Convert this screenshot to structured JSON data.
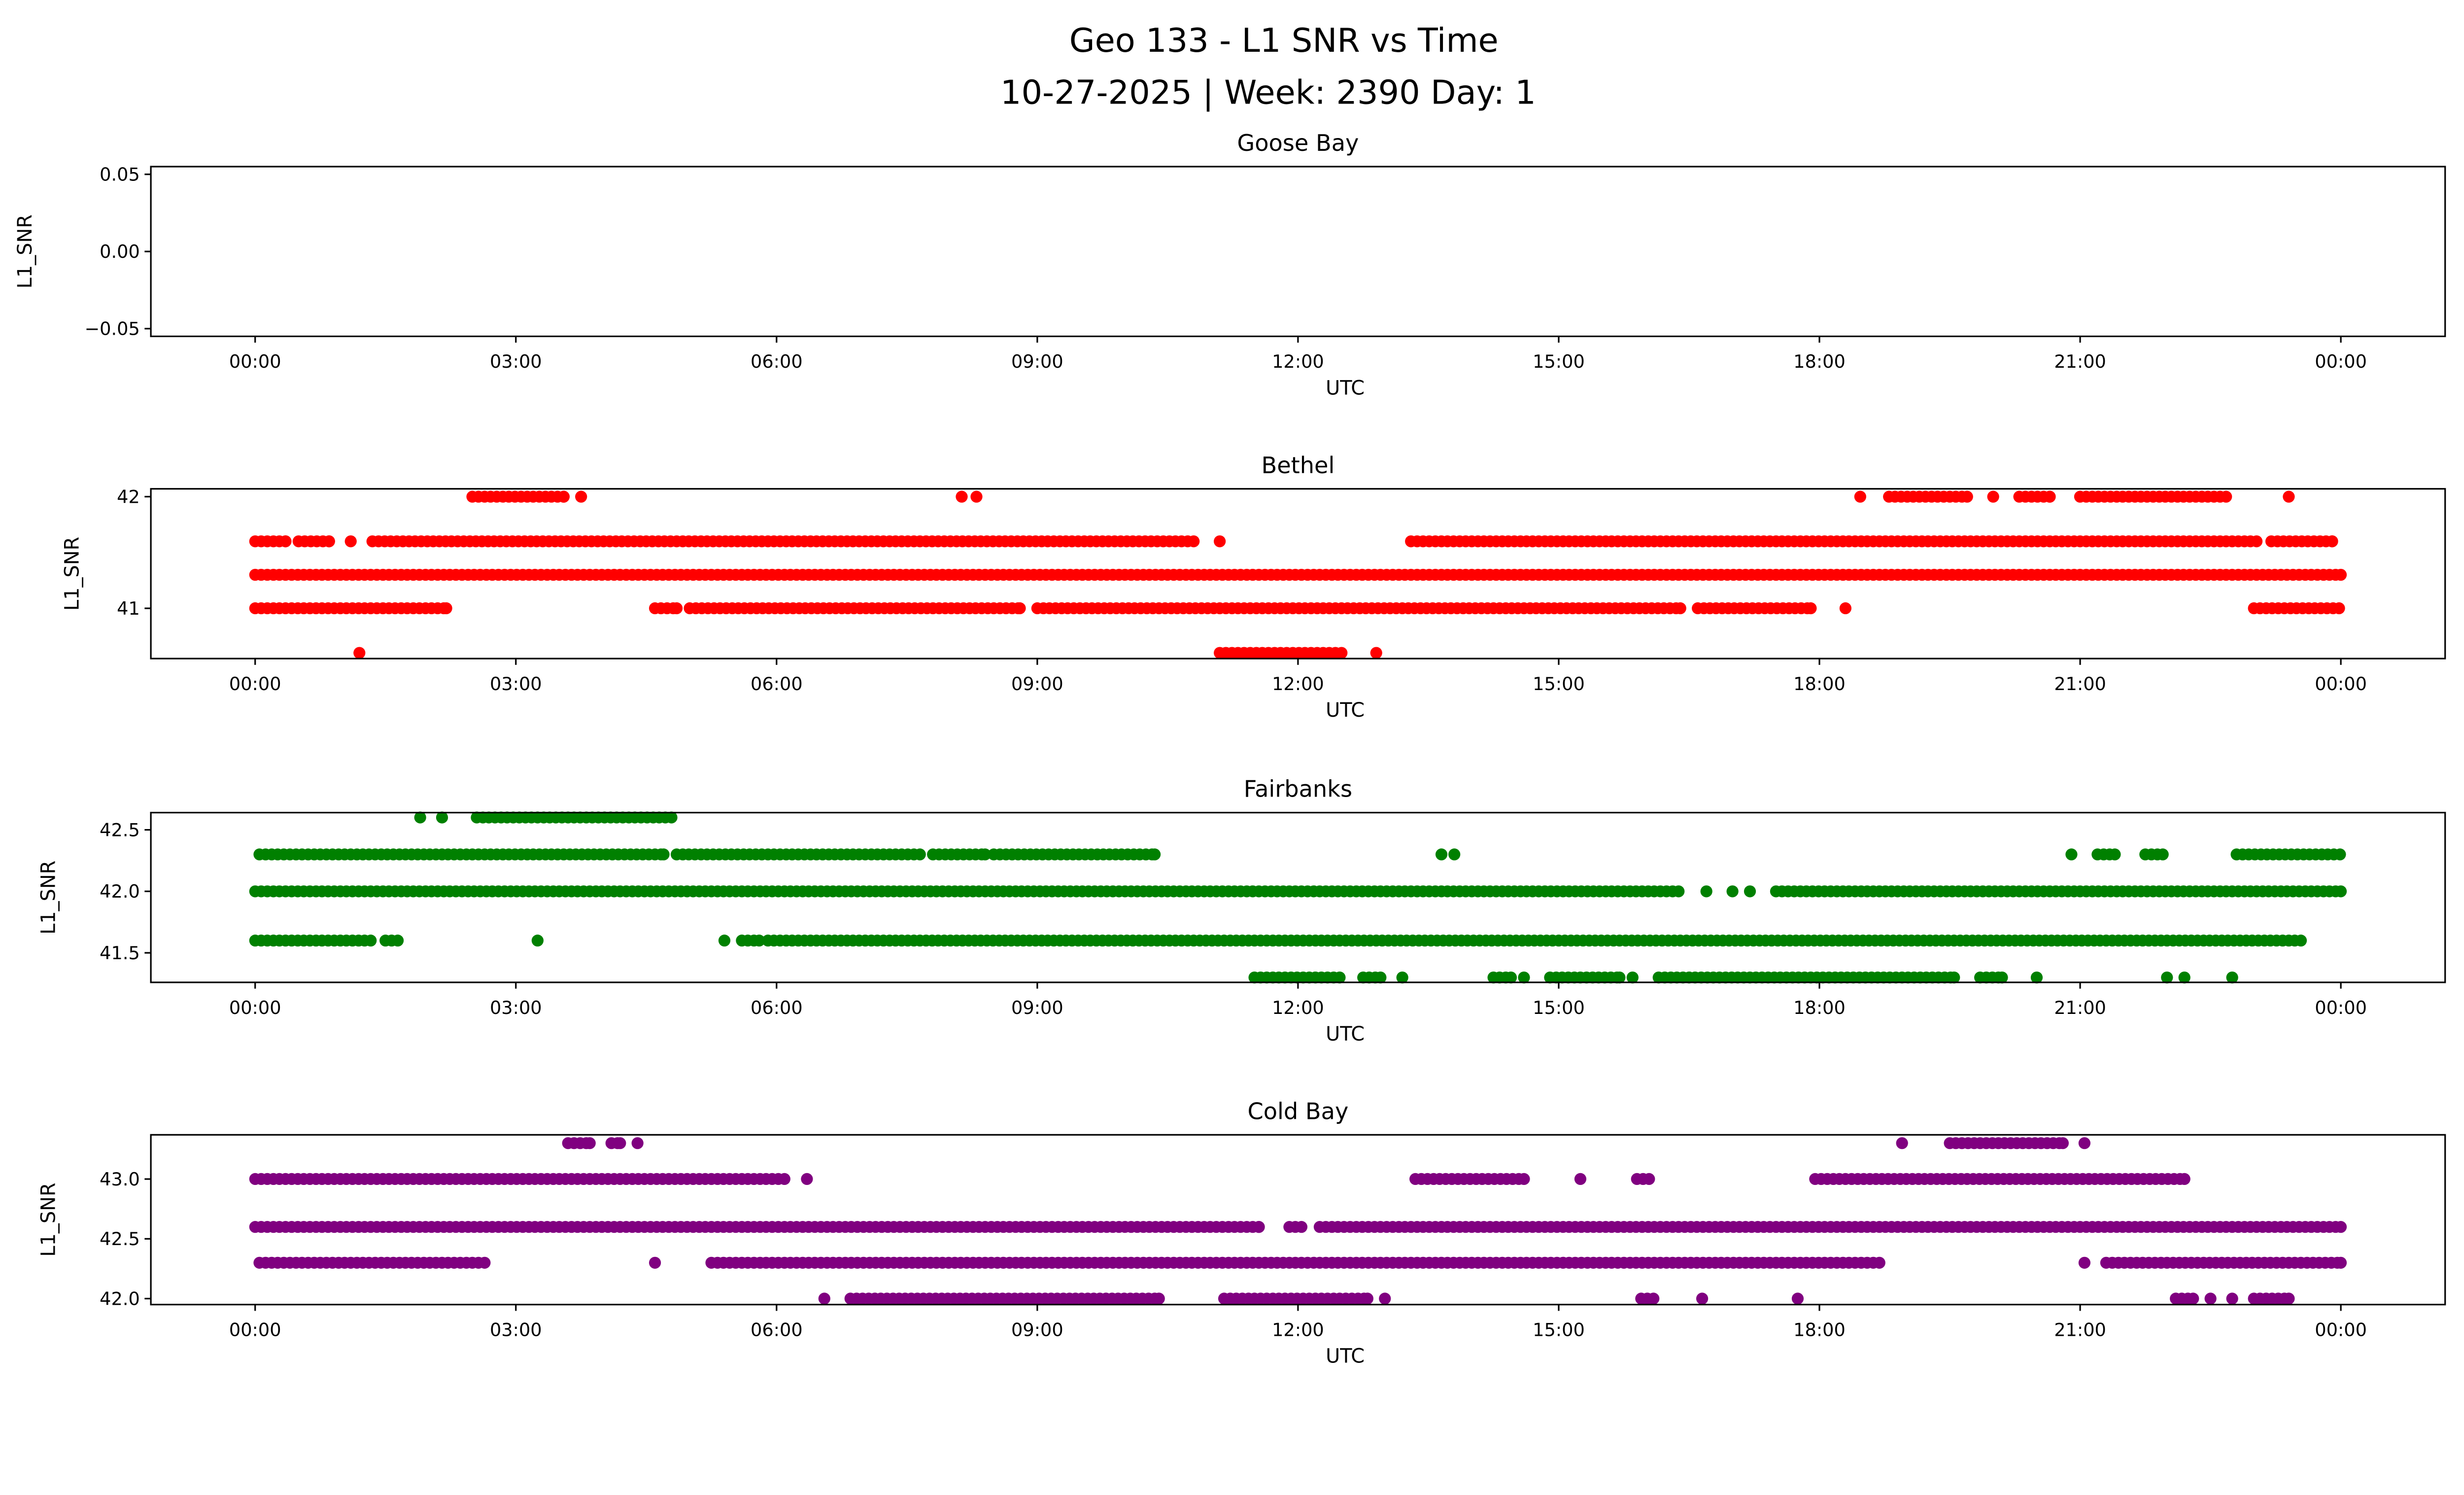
{
  "title_line1": "Geo 133 - L1 SNR vs Time",
  "title_line2": "10-27-2025 | Week: 2390 Day: 1",
  "chart_data": [
    {
      "type": "scatter",
      "title": "Goose Bay",
      "xlabel": "UTC",
      "ylabel": "L1_SNR",
      "color": "#1f77b4",
      "xlim_hours": [
        -1.2,
        25.2
      ],
      "xticks_hours": [
        0,
        3,
        6,
        9,
        12,
        15,
        18,
        21,
        24
      ],
      "xtick_labels": [
        "00:00",
        "03:00",
        "06:00",
        "09:00",
        "12:00",
        "15:00",
        "18:00",
        "21:00",
        "00:00"
      ],
      "ylim": [
        -0.055,
        0.055
      ],
      "yticks": [
        -0.05,
        0.0,
        0.05
      ],
      "ytick_labels": [
        "−0.05",
        "0.00",
        "0.05"
      ],
      "series": []
    },
    {
      "type": "scatter",
      "title": "Bethel",
      "xlabel": "UTC",
      "ylabel": "L1_SNR",
      "color": "#ff0000",
      "xlim_hours": [
        -1.2,
        25.2
      ],
      "xticks_hours": [
        0,
        3,
        6,
        9,
        12,
        15,
        18,
        21,
        24
      ],
      "xtick_labels": [
        "00:00",
        "03:00",
        "06:00",
        "09:00",
        "12:00",
        "15:00",
        "18:00",
        "21:00",
        "00:00"
      ],
      "ylim": [
        40.55,
        42.07
      ],
      "yticks": [
        41,
        42
      ],
      "ytick_labels": [
        "41",
        "42"
      ],
      "series": [
        {
          "snr": 42.0,
          "time_ranges_hours": [
            [
              2.5,
              3.55
            ],
            [
              3.75,
              3.75
            ],
            [
              8.13,
              8.13
            ],
            [
              8.3,
              8.3
            ],
            [
              18.47,
              18.47
            ],
            [
              18.8,
              19.7
            ],
            [
              20.0,
              20.0
            ],
            [
              20.3,
              20.65
            ],
            [
              21.0,
              22.7
            ],
            [
              23.4,
              23.4
            ]
          ]
        },
        {
          "snr": 41.6,
          "time_ranges_hours": [
            [
              0,
              0.35
            ],
            [
              0.5,
              0.85
            ],
            [
              1.1,
              1.1
            ],
            [
              1.35,
              10.8
            ],
            [
              11.1,
              11.1
            ],
            [
              13.3,
              23.05
            ],
            [
              23.2,
              23.9
            ]
          ]
        },
        {
          "snr": 41.3,
          "time_ranges_hours": [
            [
              0,
              24
            ]
          ]
        },
        {
          "snr": 41.0,
          "time_ranges_hours": [
            [
              0,
              2.2
            ],
            [
              4.6,
              4.85
            ],
            [
              5.0,
              8.8
            ],
            [
              9.0,
              16.4
            ],
            [
              16.6,
              17.9
            ],
            [
              18.3,
              18.3
            ],
            [
              23.0,
              24
            ]
          ]
        },
        {
          "snr": 40.6,
          "time_ranges_hours": [
            [
              1.2,
              1.2
            ],
            [
              11.1,
              12.5
            ],
            [
              12.9,
              12.9
            ]
          ]
        }
      ]
    },
    {
      "type": "scatter",
      "title": "Fairbanks",
      "xlabel": "UTC",
      "ylabel": "L1_SNR",
      "color": "#008000",
      "xlim_hours": [
        -1.2,
        25.2
      ],
      "xticks_hours": [
        0,
        3,
        6,
        9,
        12,
        15,
        18,
        21,
        24
      ],
      "xtick_labels": [
        "00:00",
        "03:00",
        "06:00",
        "09:00",
        "12:00",
        "15:00",
        "18:00",
        "21:00",
        "00:00"
      ],
      "ylim": [
        41.26,
        42.64
      ],
      "yticks": [
        41.5,
        42.0,
        42.5
      ],
      "ytick_labels": [
        "41.5",
        "42.0",
        "42.5"
      ],
      "series": [
        {
          "snr": 42.6,
          "time_ranges_hours": [
            [
              1.9,
              1.9
            ],
            [
              2.15,
              2.15
            ],
            [
              2.55,
              4.8
            ]
          ]
        },
        {
          "snr": 42.3,
          "time_ranges_hours": [
            [
              0.05,
              4.7
            ],
            [
              4.85,
              7.65
            ],
            [
              7.8,
              8.4
            ],
            [
              8.5,
              10.35
            ],
            [
              13.65,
              13.65
            ],
            [
              13.8,
              13.8
            ],
            [
              20.9,
              20.9
            ],
            [
              21.2,
              21.4
            ],
            [
              21.75,
              21.95
            ],
            [
              22.8,
              24
            ]
          ]
        },
        {
          "snr": 42.0,
          "time_ranges_hours": [
            [
              0,
              16.4
            ],
            [
              16.7,
              16.7
            ],
            [
              17.0,
              17.0
            ],
            [
              17.2,
              17.2
            ],
            [
              17.5,
              24
            ]
          ]
        },
        {
          "snr": 41.6,
          "time_ranges_hours": [
            [
              0,
              1.35
            ],
            [
              1.5,
              1.65
            ],
            [
              3.25,
              3.25
            ],
            [
              5.4,
              5.4
            ],
            [
              5.6,
              5.8
            ],
            [
              5.9,
              23.55
            ]
          ]
        },
        {
          "snr": 41.3,
          "time_ranges_hours": [
            [
              11.5,
              12.5
            ],
            [
              12.75,
              12.95
            ],
            [
              13.2,
              13.2
            ],
            [
              14.25,
              14.45
            ],
            [
              14.6,
              14.6
            ],
            [
              14.9,
              15.7
            ],
            [
              15.85,
              15.85
            ],
            [
              16.15,
              19.55
            ],
            [
              19.85,
              20.1
            ],
            [
              20.5,
              20.5
            ],
            [
              22.0,
              22.0
            ],
            [
              22.2,
              22.2
            ],
            [
              22.75,
              22.75
            ]
          ]
        }
      ]
    },
    {
      "type": "scatter",
      "title": "Cold Bay",
      "xlabel": "UTC",
      "ylabel": "L1_SNR",
      "color": "#800080",
      "xlim_hours": [
        -1.2,
        25.2
      ],
      "xticks_hours": [
        0,
        3,
        6,
        9,
        12,
        15,
        18,
        21,
        24
      ],
      "xtick_labels": [
        "00:00",
        "03:00",
        "06:00",
        "09:00",
        "12:00",
        "15:00",
        "18:00",
        "21:00",
        "00:00"
      ],
      "ylim": [
        41.95,
        43.37
      ],
      "yticks": [
        42.0,
        42.5,
        43.0
      ],
      "ytick_labels": [
        "42.0",
        "42.5",
        "43.0"
      ],
      "series": [
        {
          "snr": 43.3,
          "time_ranges_hours": [
            [
              3.6,
              3.85
            ],
            [
              4.1,
              4.2
            ],
            [
              4.4,
              4.4
            ],
            [
              18.95,
              18.95
            ],
            [
              19.5,
              20.8
            ],
            [
              21.05,
              21.05
            ]
          ]
        },
        {
          "snr": 43.0,
          "time_ranges_hours": [
            [
              0,
              6.1
            ],
            [
              6.35,
              6.35
            ],
            [
              13.35,
              14.6
            ],
            [
              15.25,
              15.25
            ],
            [
              15.9,
              16.05
            ],
            [
              17.95,
              22.2
            ]
          ]
        },
        {
          "snr": 42.6,
          "time_ranges_hours": [
            [
              0,
              11.55
            ],
            [
              11.9,
              12.05
            ],
            [
              12.25,
              24
            ]
          ]
        },
        {
          "snr": 42.3,
          "time_ranges_hours": [
            [
              0.05,
              2.65
            ],
            [
              4.6,
              4.6
            ],
            [
              5.25,
              18.7
            ],
            [
              21.05,
              21.05
            ],
            [
              21.3,
              24
            ]
          ]
        },
        {
          "snr": 42.0,
          "time_ranges_hours": [
            [
              6.55,
              6.55
            ],
            [
              6.85,
              10.4
            ],
            [
              11.15,
              12.8
            ],
            [
              13.0,
              13.0
            ],
            [
              15.95,
              16.1
            ],
            [
              16.65,
              16.65
            ],
            [
              17.75,
              17.75
            ],
            [
              22.1,
              22.3
            ],
            [
              22.5,
              22.5
            ],
            [
              22.75,
              22.75
            ],
            [
              23.0,
              23.4
            ]
          ]
        }
      ]
    }
  ]
}
